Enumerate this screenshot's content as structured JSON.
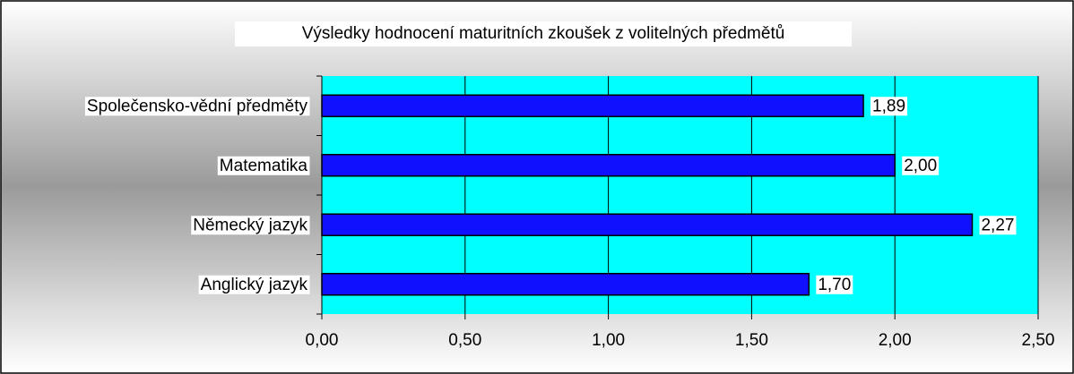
{
  "chart_data": {
    "type": "bar",
    "orientation": "horizontal",
    "title": "Výsledky hodnocení maturitních zkoušek z volitelných předmětů",
    "categories": [
      "Společensko-vědní předměty",
      "Matematika",
      "Německý jazyk",
      "Anglický jazyk"
    ],
    "values": [
      1.89,
      2.0,
      2.27,
      1.7
    ],
    "value_labels": [
      "1,89",
      "2,00",
      "2,27",
      "1,70"
    ],
    "color": "#1010ff",
    "xlim": [
      0,
      2.5
    ],
    "xticks": [
      {
        "value": 0,
        "label": "0,00"
      },
      {
        "value": 0.5,
        "label": "0,50"
      },
      {
        "value": 1,
        "label": "1,00"
      },
      {
        "value": 1.5,
        "label": "1,50"
      },
      {
        "value": 2,
        "label": "2,00"
      },
      {
        "value": 2.5,
        "label": "2,50"
      }
    ],
    "grid": true
  }
}
